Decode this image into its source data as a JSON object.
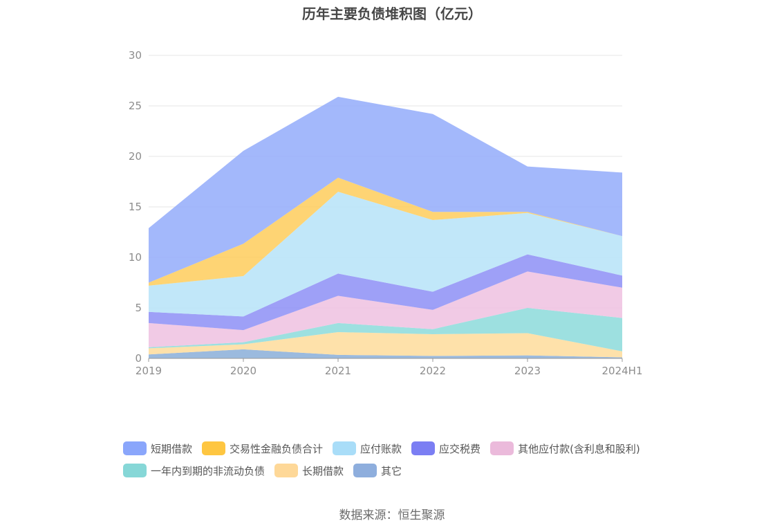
{
  "chart_data": {
    "type": "area",
    "stacked": true,
    "title": "历年主要负债堆积图（亿元）",
    "categories": [
      "2019",
      "2020",
      "2021",
      "2022",
      "2023",
      "2024H1"
    ],
    "ylim": [
      0,
      30
    ],
    "yticks": [
      "0",
      "5",
      "10",
      "15",
      "20",
      "25",
      "30"
    ],
    "grid": true,
    "legend_position": "bottom",
    "series": [
      {
        "name": "其它",
        "color": "#8aaed8",
        "values": [
          0.4,
          0.9,
          0.35,
          0.25,
          0.3,
          0.1
        ]
      },
      {
        "name": "长期借款",
        "color": "#fedc9b",
        "values": [
          0.6,
          0.5,
          2.25,
          2.15,
          2.2,
          0.6
        ]
      },
      {
        "name": "一年内到期的非流动负债",
        "color": "#8cdada",
        "values": [
          0.1,
          0.2,
          0.9,
          0.5,
          2.5,
          3.3
        ]
      },
      {
        "name": "其他应付款(含利息和股利)",
        "color": "#eec1e0",
        "values": [
          2.4,
          1.2,
          2.7,
          1.9,
          3.6,
          3.0
        ]
      },
      {
        "name": "应交税费",
        "color": "#8d8ff6",
        "values": [
          1.1,
          1.35,
          2.2,
          1.8,
          1.7,
          1.2
        ]
      },
      {
        "name": "应付账款",
        "color": "#b6e3f8",
        "values": [
          2.6,
          4.0,
          8.1,
          7.1,
          4.1,
          3.9
        ]
      },
      {
        "name": "交易性金融负债合计",
        "color": "#fecc5c",
        "values": [
          0.3,
          3.2,
          1.4,
          0.8,
          0.1,
          0.0
        ]
      },
      {
        "name": "短期借款",
        "color": "#93acfa",
        "values": [
          5.4,
          9.2,
          8.0,
          9.7,
          4.5,
          6.3
        ]
      }
    ]
  },
  "legend": [
    {
      "label": "短期借款",
      "color": "#8aa6fb"
    },
    {
      "label": "交易性金融负债合计",
      "color": "#fec641"
    },
    {
      "label": "应付账款",
      "color": "#a9ddf8"
    },
    {
      "label": "应交税费",
      "color": "#7b7ef3"
    },
    {
      "label": "其他应付款(含利息和股利)",
      "color": "#ebbadb"
    },
    {
      "label": "一年内到期的非流动负债",
      "color": "#86d7d7"
    },
    {
      "label": "长期借款",
      "color": "#fed898"
    },
    {
      "label": "其它",
      "color": "#8eaedd"
    }
  ],
  "source": "数据来源：恒生聚源"
}
